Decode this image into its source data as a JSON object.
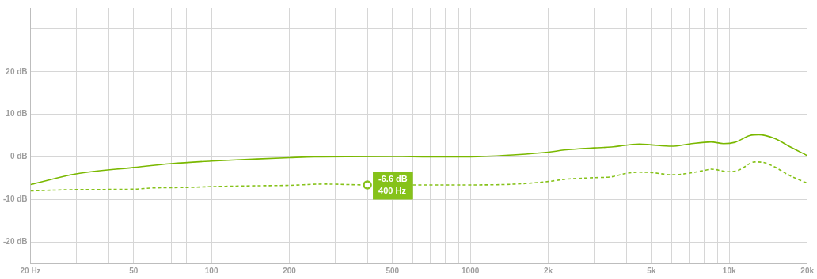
{
  "chart_data": {
    "type": "line",
    "xlim": [
      20,
      20000
    ],
    "ylim": [
      -25,
      35
    ],
    "log": "x",
    "grid": true,
    "marker": "none",
    "xticks": [
      {
        "value": 20,
        "label": "20 Hz"
      },
      {
        "value": 30,
        "label": null
      },
      {
        "value": 40,
        "label": null
      },
      50,
      {
        "value": 60,
        "label": null
      },
      {
        "value": 70,
        "label": null
      },
      {
        "value": 80,
        "label": null
      },
      {
        "value": 90,
        "label": null
      },
      100,
      200,
      {
        "value": 300,
        "label": null
      },
      {
        "value": 400,
        "label": null
      },
      500,
      {
        "value": 600,
        "label": null
      },
      {
        "value": 700,
        "label": null
      },
      {
        "value": 800,
        "label": null
      },
      {
        "value": 900,
        "label": null
      },
      1000,
      {
        "value": 2000,
        "label": "2k"
      },
      {
        "value": 3000,
        "label": null
      },
      {
        "value": 4000,
        "label": null
      },
      {
        "value": 5000,
        "label": "5k"
      },
      {
        "value": 6000,
        "label": null
      },
      {
        "value": 7000,
        "label": null
      },
      {
        "value": 8000,
        "label": null
      },
      {
        "value": 9000,
        "label": null
      },
      {
        "value": 10000,
        "label": "10k"
      },
      {
        "value": 20000,
        "label": "20k"
      }
    ],
    "yticks": [
      {
        "value": -20,
        "label": "-20 dB"
      },
      {
        "value": -10,
        "label": "-10 dB"
      },
      {
        "value": 0,
        "label": "0 dB"
      },
      {
        "value": 10,
        "label": "10 dB"
      },
      {
        "value": 20,
        "label": "20 dB"
      },
      {
        "value": 30,
        "label": null
      }
    ],
    "annotations": [
      {
        "text": "-6.6 dB\n400 Hz",
        "x": 400,
        "y": -6.6
      }
    ],
    "series": [
      {
        "color": "#7ab800",
        "line_style": "solid",
        "x": [
          20,
          30,
          50,
          70,
          100,
          150,
          200,
          250,
          500,
          700,
          1000,
          1500,
          2000,
          2300,
          3000,
          3500,
          4500,
          5000,
          6000,
          7000,
          8500,
          9500,
          10500,
          12000,
          13000,
          15000,
          17000,
          20000
        ],
        "values": [
          -6.5,
          -4,
          -2.5,
          -1.6,
          -1,
          -0.5,
          -0.2,
          0,
          0.1,
          0,
          0,
          0.5,
          1.1,
          1.6,
          2.1,
          2.3,
          3,
          2.8,
          2.5,
          3,
          3.5,
          3.1,
          3.4,
          5,
          5.2,
          4.3,
          2.5,
          0.3
        ]
      },
      {
        "color": "#86c21a",
        "line_style": "dashed",
        "x": [
          20,
          30,
          50,
          60,
          80,
          100,
          150,
          200,
          270,
          400,
          600,
          1000,
          1500,
          2000,
          2300,
          3000,
          3500,
          4000,
          4500,
          5000,
          6000,
          6500,
          8000,
          8500,
          10000,
          11000,
          12500,
          13500,
          15000,
          17000,
          20000
        ],
        "values": [
          -8,
          -7.7,
          -7.6,
          -7.3,
          -7.2,
          -7,
          -6.8,
          -6.7,
          -6.4,
          -6.6,
          -6.6,
          -6.6,
          -6.4,
          -5.8,
          -5.3,
          -4.9,
          -4.7,
          -3.9,
          -3.6,
          -3.7,
          -4.2,
          -4.1,
          -3.2,
          -2.9,
          -3.5,
          -3,
          -1.2,
          -1.3,
          -2.4,
          -4.3,
          -6.2
        ]
      }
    ]
  }
}
